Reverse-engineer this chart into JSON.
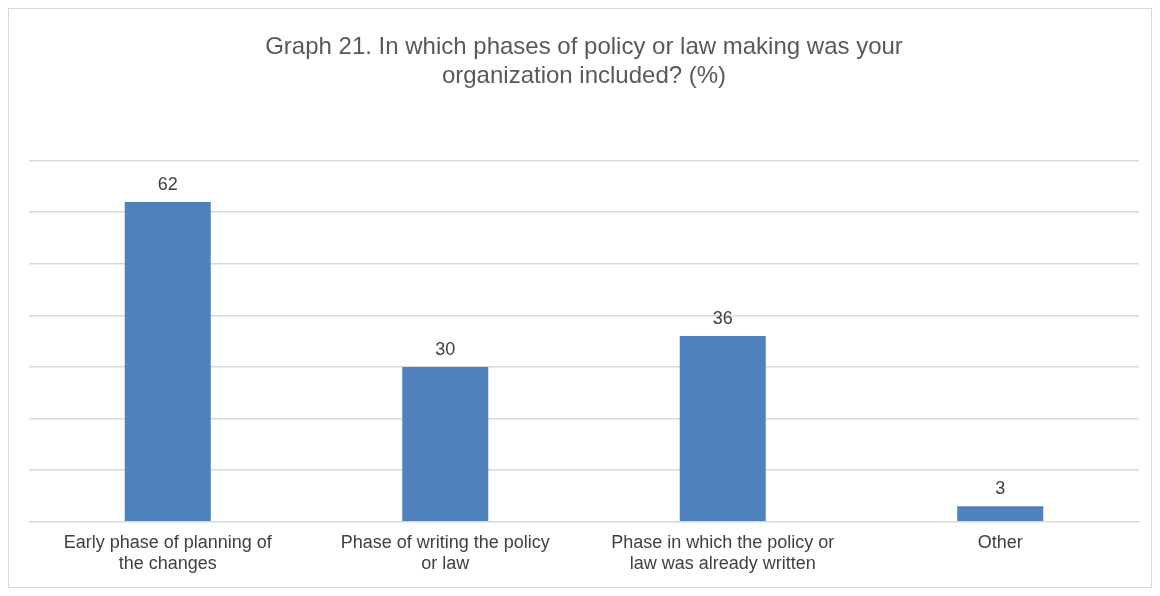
{
  "chart_data": {
    "type": "bar",
    "title": "Graph 21. In which phases of policy or law making was your organization included? (%)",
    "categories": [
      "Early phase of planning of the changes",
      "Phase of writing the policy or law",
      "Phase in which the policy or law was already written",
      "Other"
    ],
    "values": [
      62,
      30,
      36,
      3
    ],
    "color": "#4f81bd",
    "ylim": [
      0,
      70
    ],
    "yticks": [
      0,
      10,
      20,
      30,
      40,
      50,
      60,
      70
    ],
    "tick_labels": "x",
    "grid": "y",
    "data_labels": true,
    "legend": false
  }
}
